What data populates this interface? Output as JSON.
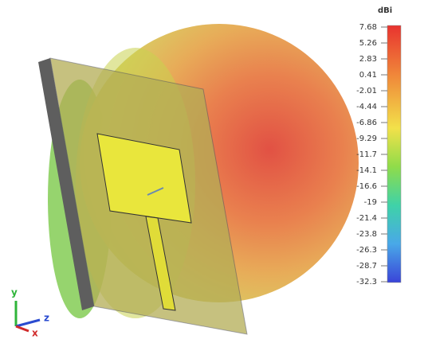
{
  "colorbar": {
    "unit": "dBi",
    "ticks": [
      7.68,
      5.26,
      2.83,
      0.41,
      -2.01,
      -4.44,
      -6.86,
      -9.29,
      -11.7,
      -14.1,
      -16.6,
      -19,
      -21.4,
      -23.8,
      -26.3,
      -28.7,
      -32.3
    ]
  },
  "axes": {
    "y": "y",
    "z": "z",
    "x": "x"
  }
}
